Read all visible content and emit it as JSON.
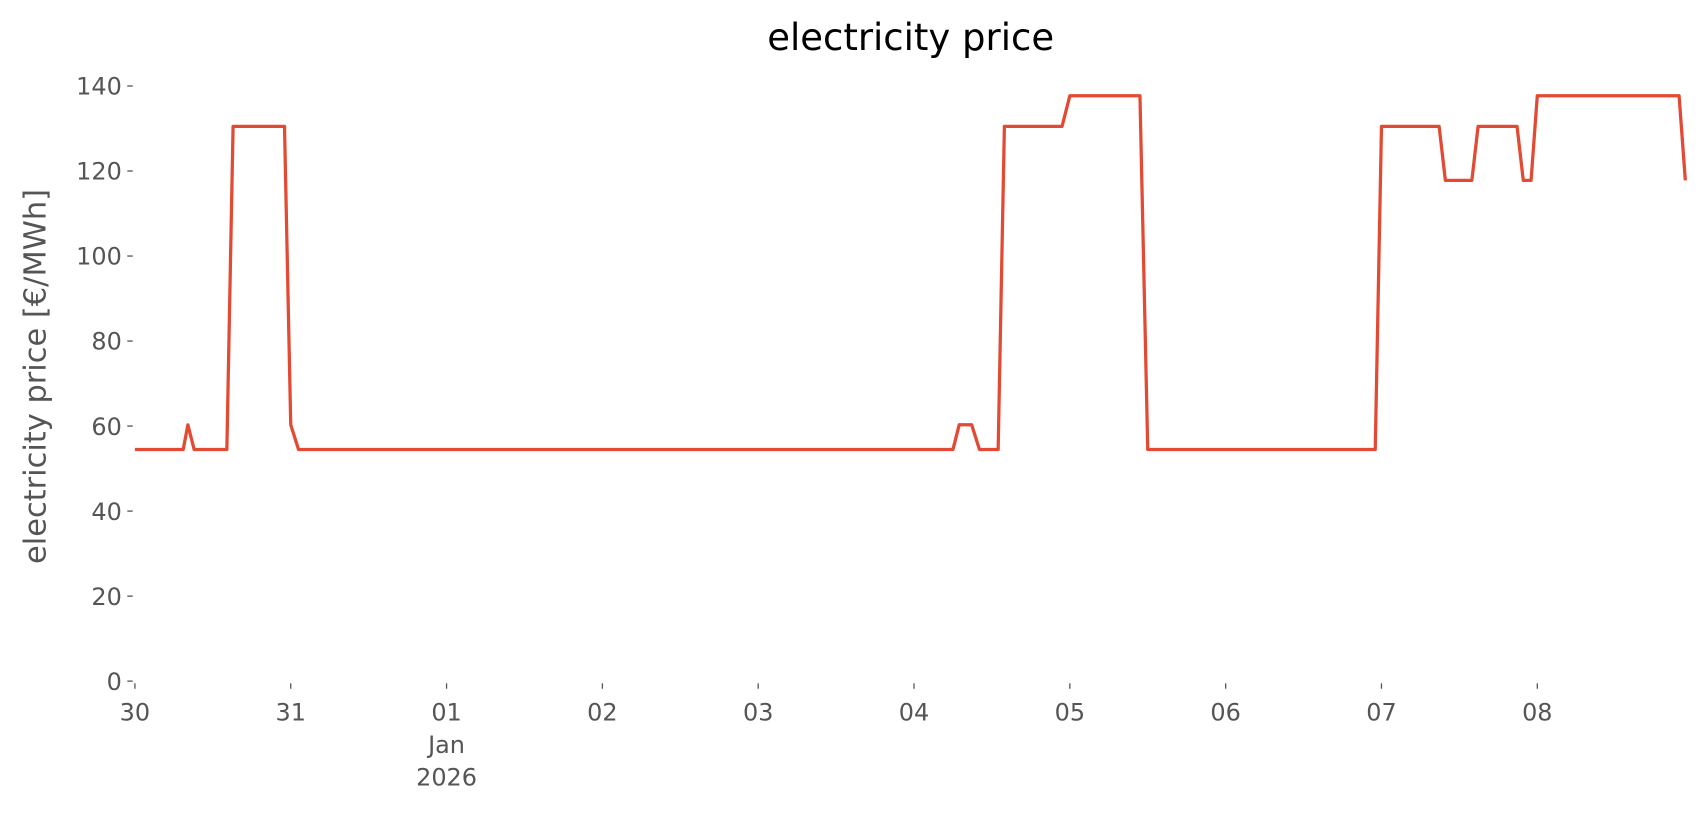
{
  "chart_data": {
    "type": "line",
    "title": "electricity price",
    "ylabel": "electricity price [€/MWh]",
    "x": [
      0,
      0.31,
      0.34,
      0.38,
      0.59,
      0.63,
      0.96,
      1.0,
      1.05,
      5.25,
      5.29,
      5.37,
      5.42,
      5.54,
      5.58,
      5.95,
      6.0,
      6.45,
      6.5,
      7.96,
      8.0,
      8.37,
      8.41,
      8.58,
      8.62,
      8.87,
      8.91,
      8.96,
      9.0,
      9.91,
      9.95
    ],
    "series": [
      {
        "name": "electricity price",
        "color": "#e24a33",
        "values": [
          54.5,
          54.5,
          60.3,
          54.5,
          54.5,
          130.5,
          130.5,
          60.3,
          54.5,
          54.5,
          60.3,
          60.3,
          54.5,
          54.5,
          130.5,
          130.5,
          137.7,
          137.7,
          54.5,
          54.5,
          130.5,
          130.5,
          117.8,
          117.8,
          130.5,
          130.5,
          117.8,
          117.8,
          137.7,
          137.7,
          117.8
        ]
      }
    ],
    "xlim": [
      0,
      9.95
    ],
    "xticks": [
      {
        "value": 0,
        "label": "30"
      },
      {
        "value": 1,
        "label": "31"
      },
      {
        "value": 2,
        "label": "01\nJan\n2026"
      },
      {
        "value": 3,
        "label": "02"
      },
      {
        "value": 4,
        "label": "03"
      },
      {
        "value": 5,
        "label": "04"
      },
      {
        "value": 6,
        "label": "05"
      },
      {
        "value": 7,
        "label": "06"
      },
      {
        "value": 8,
        "label": "07"
      },
      {
        "value": 9,
        "label": "08"
      }
    ],
    "ylim": [
      0,
      140
    ],
    "yticks": [
      0,
      20,
      40,
      60,
      80,
      100,
      120,
      140
    ],
    "grid": false
  }
}
